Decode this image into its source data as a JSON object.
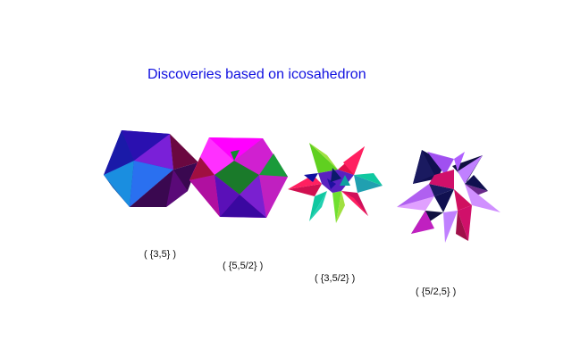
{
  "title": "Discoveries based on icosahedron",
  "polyhedra": [
    {
      "label": "( {3,5} )",
      "name": "icosahedron"
    },
    {
      "label": "( {5,5/2} )",
      "name": "great-dodecahedron"
    },
    {
      "label": "( {3,5/2} )",
      "name": "great-icosahedron"
    },
    {
      "label": "( {5/2,5} )",
      "name": "small-stellated-dodecahedron"
    }
  ],
  "colors": {
    "title": "#1010e0",
    "purple": "#8a2be2",
    "blue": "#1a1ad0",
    "magenta": "#ff00ff",
    "crimson": "#d0105a",
    "teal": "#10c8a0",
    "lime": "#80e020",
    "navy": "#101050",
    "lavender": "#c080ff"
  }
}
